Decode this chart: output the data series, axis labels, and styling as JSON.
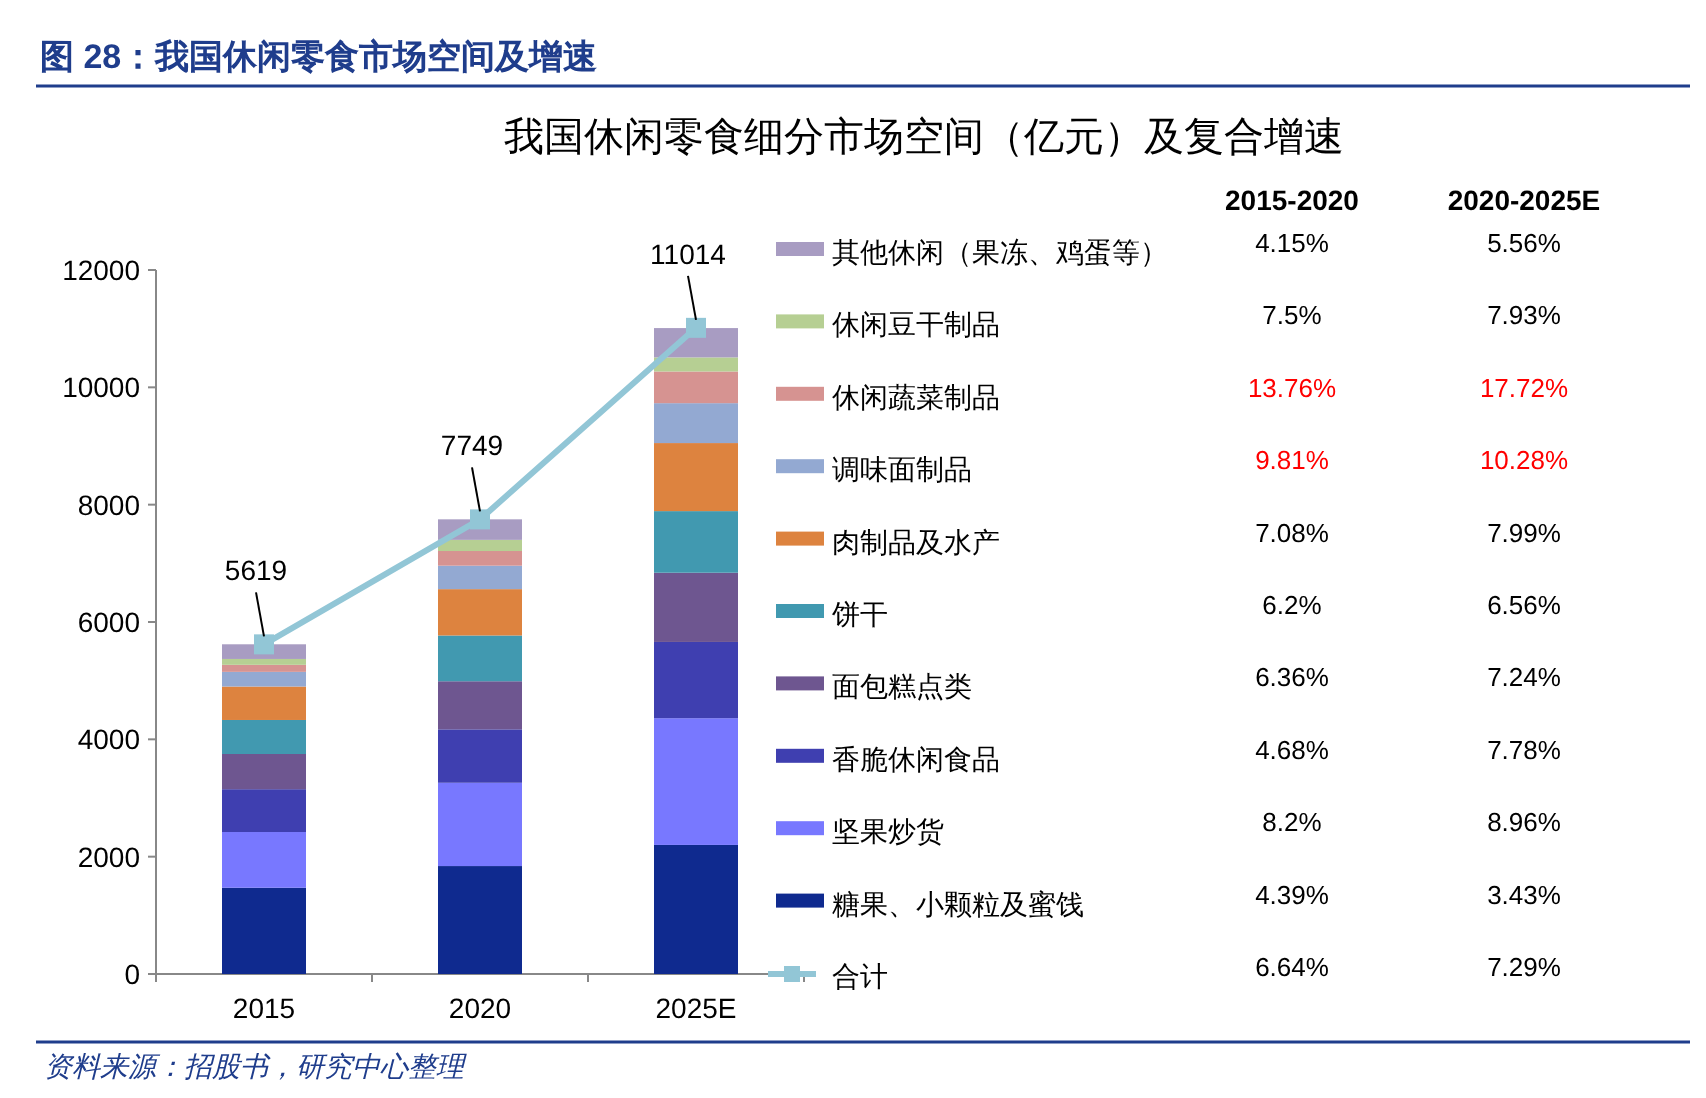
{
  "chart_data": [
    {
      "type": "bar",
      "stacked": true,
      "title": "图 28：我国休闲零食市场空间及增速",
      "subtitle": "我国休闲零食细分市场空间（亿元）及复合增速",
      "categories": [
        "2015",
        "2020",
        "2025E"
      ],
      "ylim": [
        0,
        12000
      ],
      "yticks": [
        0,
        2000,
        4000,
        6000,
        8000,
        10000,
        12000
      ],
      "grid": false,
      "legend": "right",
      "series": [
        {
          "name": "糖果、小颗粒及蜜饯",
          "color": "#0f2a8f",
          "values": [
            1470,
            1840,
            2200
          ]
        },
        {
          "name": "坚果炒货",
          "color": "#7878ff",
          "values": [
            950,
            1420,
            2160
          ]
        },
        {
          "name": "香脆休闲食品",
          "color": "#3f3fb0",
          "values": [
            730,
            910,
            1300
          ]
        },
        {
          "name": "面包糕点类",
          "color": "#6e5690",
          "values": [
            600,
            820,
            1180
          ]
        },
        {
          "name": "饼干",
          "color": "#4199b0",
          "values": [
            580,
            780,
            1050
          ]
        },
        {
          "name": "肉制品及水产",
          "color": "#dd833f",
          "values": [
            570,
            790,
            1160
          ]
        },
        {
          "name": "调味面制品",
          "color": "#93a9d2",
          "values": [
            250,
            400,
            680
          ]
        },
        {
          "name": "休闲蔬菜制品",
          "color": "#d69391",
          "values": [
            120,
            250,
            540
          ]
        },
        {
          "name": "休闲豆干制品",
          "color": "#b6cf93",
          "values": [
            100,
            190,
            240
          ]
        },
        {
          "name": "其他休闲（果冻、鸡蛋等）",
          "color": "#a89cc2",
          "values": [
            250,
            350,
            500
          ]
        },
        {
          "name": "合计",
          "type": "line",
          "color": "#92c6d6",
          "marker": "square",
          "values": [
            5619,
            7749,
            11014
          ],
          "value_labels": [
            "5619",
            "7749",
            "11014"
          ]
        }
      ],
      "annotations": [
        "资料来源：招股书，研究中心整理"
      ]
    },
    {
      "type": "other",
      "categories": [
        "2015-2020",
        "2020-2025E"
      ],
      "cell_labels": [
        [
          "4.15%",
          "5.56%"
        ],
        [
          "7.5%",
          "7.93%"
        ],
        [
          "13.76%",
          "17.72%"
        ],
        [
          "9.81%",
          "10.28%"
        ],
        [
          "7.08%",
          "7.99%"
        ],
        [
          "6.2%",
          "6.56%"
        ],
        [
          "6.36%",
          "7.24%"
        ],
        [
          "4.68%",
          "7.78%"
        ],
        [
          "8.2%",
          "8.96%"
        ],
        [
          "4.39%",
          "3.43%"
        ],
        [
          "6.64%",
          "7.29%"
        ]
      ],
      "colors": [
        "#000000",
        "#000000",
        "#ff0000",
        "#ff0000",
        "#000000",
        "#000000",
        "#000000",
        "#000000",
        "#000000",
        "#000000",
        "#000000"
      ]
    }
  ]
}
